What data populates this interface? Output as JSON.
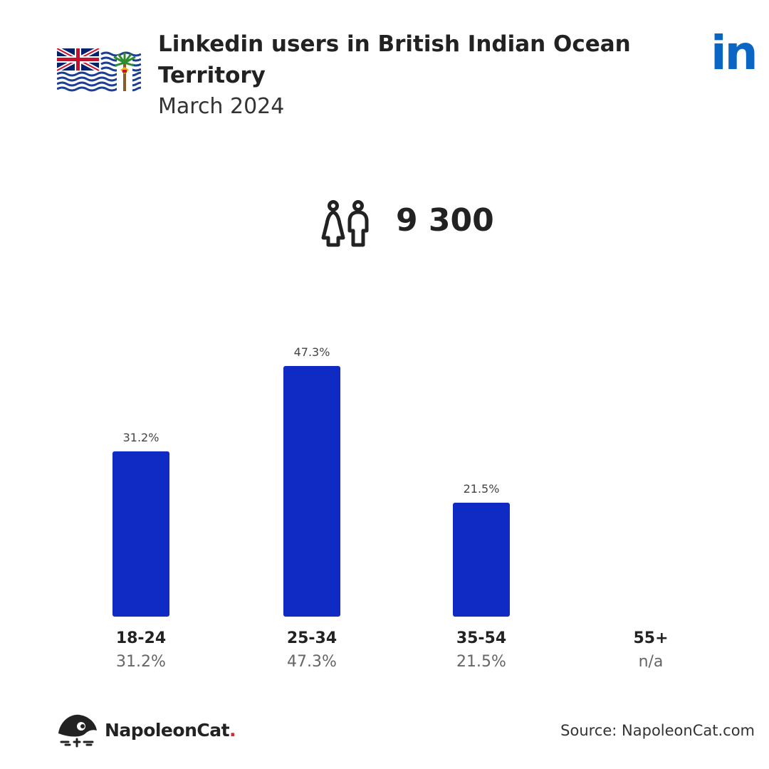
{
  "header": {
    "title": "Linkedin users in British Indian Ocean Territory",
    "subtitle": "March 2024",
    "logo_text": "in"
  },
  "total": {
    "icon": "people-icon",
    "value": "9 300"
  },
  "chart_data": {
    "type": "bar",
    "categories": [
      "18-24",
      "25-34",
      "35-54",
      "55+"
    ],
    "values": [
      31.2,
      47.3,
      21.5,
      null
    ],
    "value_labels": [
      "31.2%",
      "47.3%",
      "21.5%",
      "n/a"
    ],
    "bar_color": "#0f2bc4",
    "ylim": [
      0,
      50
    ]
  },
  "footer": {
    "brand": "NapoleonCat",
    "brand_dot": ".",
    "source": "Source: NapoleonCat.com"
  },
  "colors": {
    "linkedin": "#0a66c2",
    "bar": "#0f2bc4",
    "brand_dot": "#e0262b"
  }
}
